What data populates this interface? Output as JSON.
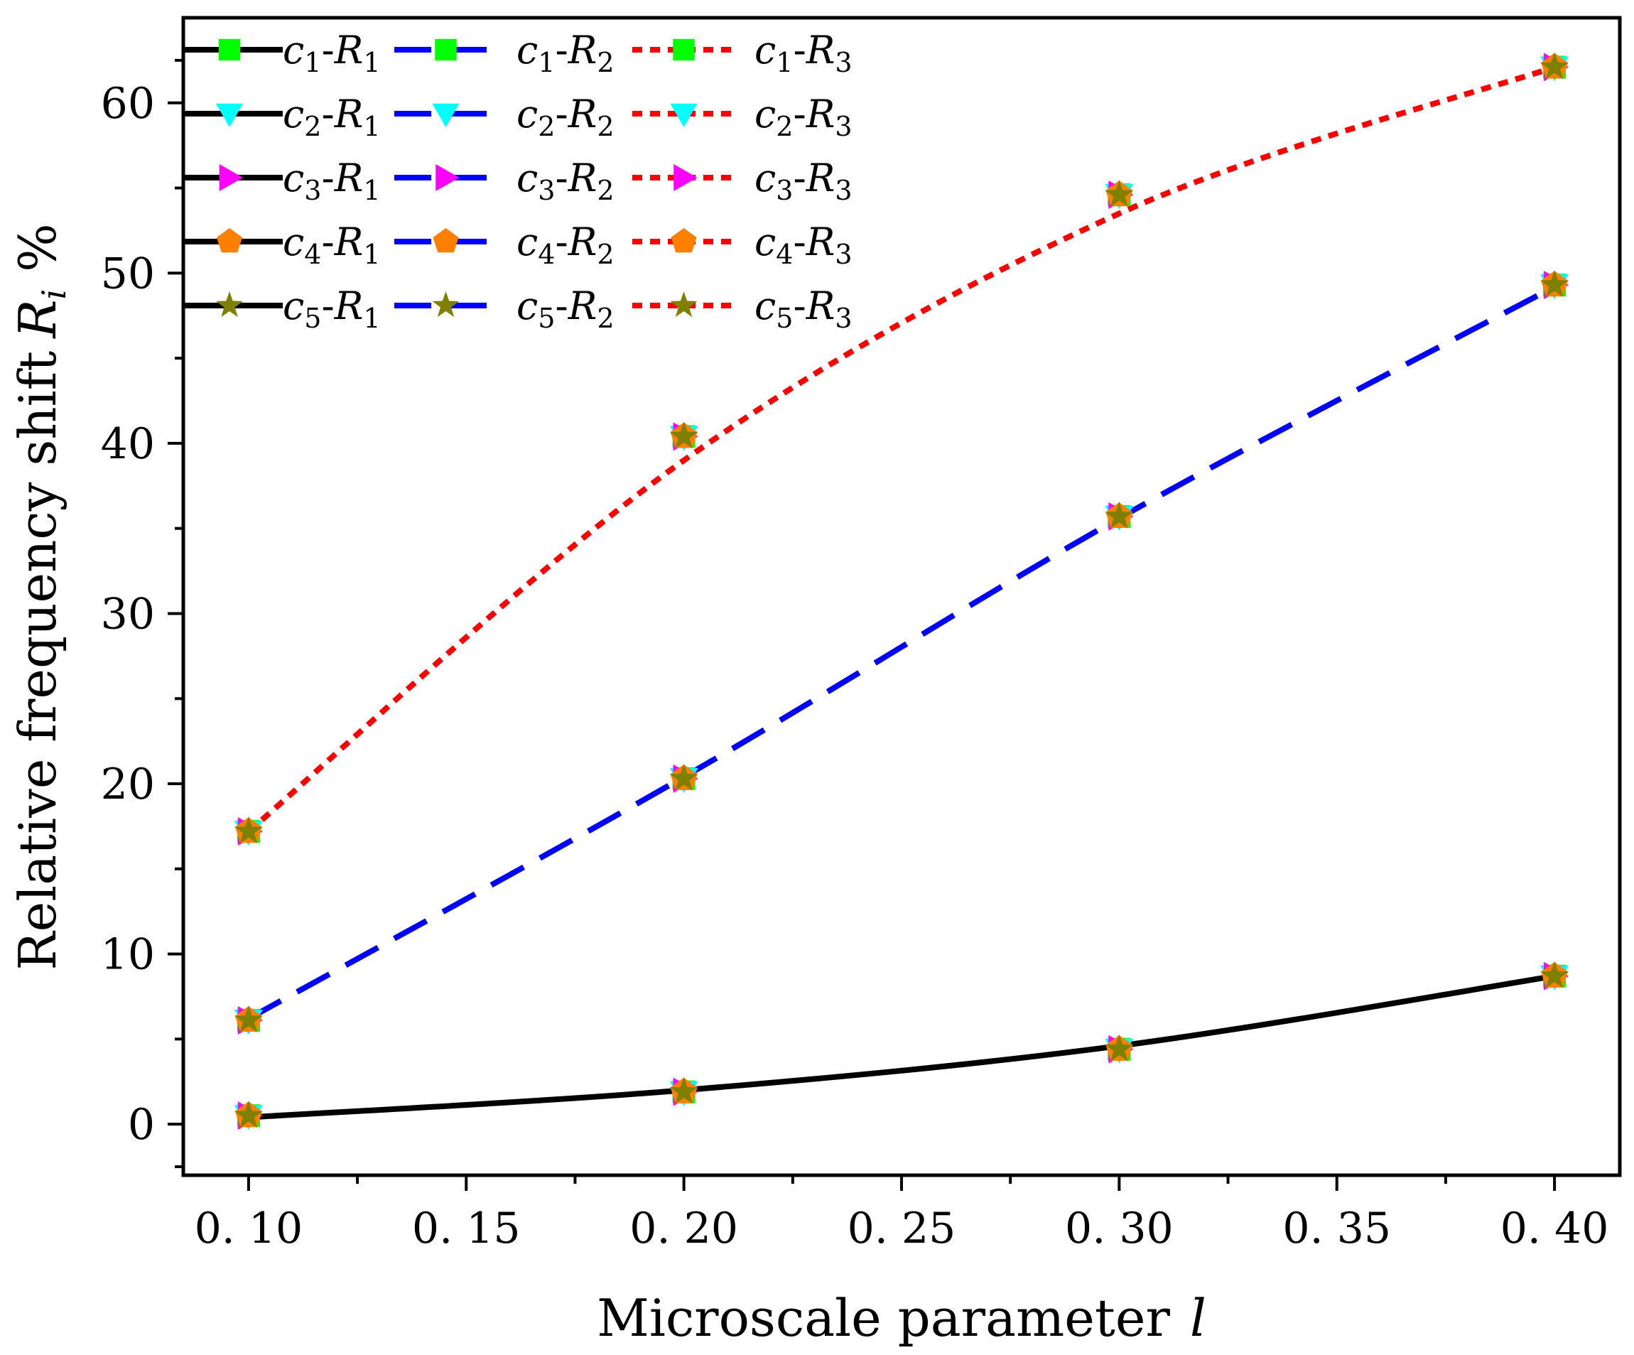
{
  "chart_data": {
    "type": "line",
    "xlabel": "Microscale parameter",
    "xlabel_symbol": "l",
    "ylabel": "Relative frequency shift",
    "ylabel_symbol": "R",
    "ylabel_subscript": "i",
    "ylabel_unit": "%",
    "xlim": [
      0.085,
      0.415
    ],
    "ylim": [
      -3,
      65
    ],
    "xticks": [
      0.1,
      0.15,
      0.2,
      0.25,
      0.3,
      0.35,
      0.4
    ],
    "xtick_labels": [
      "0. 10",
      "0. 15",
      "0. 20",
      "0. 25",
      "0. 30",
      "0. 35",
      "0. 40"
    ],
    "yticks": [
      0,
      10,
      20,
      30,
      40,
      50,
      60
    ],
    "ytick_labels": [
      "0",
      "10",
      "20",
      "30",
      "40",
      "50",
      "60"
    ],
    "x": [
      0.1,
      0.2,
      0.3,
      0.4
    ],
    "curves": [
      {
        "id": "R1",
        "color": "#000000",
        "style": "solid",
        "values": [
          0.4,
          2.0,
          4.6,
          8.7
        ]
      },
      {
        "id": "R2",
        "color": "#0000ff",
        "style": "dashed",
        "values": [
          6.2,
          20.4,
          35.6,
          49.2
        ]
      },
      {
        "id": "R3",
        "color": "#ff0000",
        "style": "dotted",
        "values": [
          17.2,
          39.0,
          53.5,
          62.1
        ]
      }
    ],
    "marker_values": {
      "R1": [
        0.5,
        1.9,
        4.4,
        8.7
      ],
      "R2": [
        6.1,
        20.3,
        35.7,
        49.3
      ],
      "R3": [
        17.2,
        40.4,
        54.6,
        62.1
      ]
    },
    "marker_sets": [
      {
        "id": "c1",
        "marker": "square",
        "color": "#00ff00"
      },
      {
        "id": "c2",
        "marker": "triangle-down",
        "color": "#00ffff"
      },
      {
        "id": "c3",
        "marker": "triangle-right",
        "color": "#ff00ff"
      },
      {
        "id": "c4",
        "marker": "pentagon",
        "color": "#ff8000"
      },
      {
        "id": "c5",
        "marker": "star",
        "color": "#808000"
      }
    ],
    "legend": {
      "placement": "top-left",
      "columns": [
        {
          "curve": "R1",
          "entries": [
            {
              "c": "c",
              "cs": "1",
              "r": "R",
              "rs": "1"
            },
            {
              "c": "c",
              "cs": "2",
              "r": "R",
              "rs": "1"
            },
            {
              "c": "c",
              "cs": "3",
              "r": "R",
              "rs": "1"
            },
            {
              "c": "c",
              "cs": "4",
              "r": "R",
              "rs": "1"
            },
            {
              "c": "c",
              "cs": "5",
              "r": "R",
              "rs": "1"
            }
          ]
        },
        {
          "curve": "R2",
          "entries": [
            {
              "c": "c",
              "cs": "1",
              "r": "R",
              "rs": "2"
            },
            {
              "c": "c",
              "cs": "2",
              "r": "R",
              "rs": "2"
            },
            {
              "c": "c",
              "cs": "3",
              "r": "R",
              "rs": "2"
            },
            {
              "c": "c",
              "cs": "4",
              "r": "R",
              "rs": "2"
            },
            {
              "c": "c",
              "cs": "5",
              "r": "R",
              "rs": "2"
            }
          ]
        },
        {
          "curve": "R3",
          "entries": [
            {
              "c": "c",
              "cs": "1",
              "r": "R",
              "rs": "3"
            },
            {
              "c": "c",
              "cs": "2",
              "r": "R",
              "rs": "3"
            },
            {
              "c": "c",
              "cs": "3",
              "r": "R",
              "rs": "3"
            },
            {
              "c": "c",
              "cs": "4",
              "r": "R",
              "rs": "3"
            },
            {
              "c": "c",
              "cs": "5",
              "r": "R",
              "rs": "3"
            }
          ]
        }
      ]
    },
    "grid": false
  }
}
